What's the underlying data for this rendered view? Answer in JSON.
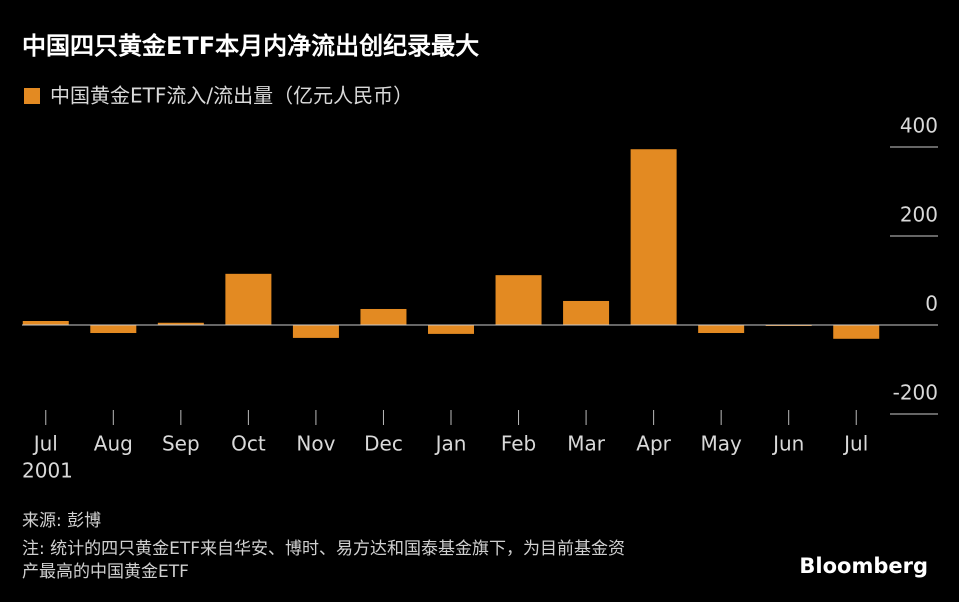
{
  "chart_data": {
    "type": "bar",
    "title": "中国四只黄金ETF本月内净流出创纪录最大",
    "series": [
      {
        "name": "中国黄金ETF流入/流出量（亿元人民币）",
        "color": "#e38a22",
        "values": [
          9,
          -18,
          5,
          115,
          -29,
          36,
          -20,
          112,
          54,
          395,
          -18,
          -2,
          -31
        ]
      }
    ],
    "categories": [
      "Jul",
      "Aug",
      "Sep",
      "Oct",
      "Nov",
      "Dec",
      "Jan",
      "Feb",
      "Mar",
      "Apr",
      "May",
      "Jun",
      "Jul"
    ],
    "year_label": "2001",
    "ylim": [
      -200,
      400
    ],
    "yticks": [
      400,
      200,
      0,
      -200
    ],
    "grid": true,
    "source": "来源: 彭博",
    "note": [
      "注: 统计的四只黄金ETF来自华安、博时、易方达和国泰基金旗下，为目前基金资",
      "产最高的中国黄金ETF"
    ],
    "brand": "Bloomberg"
  }
}
